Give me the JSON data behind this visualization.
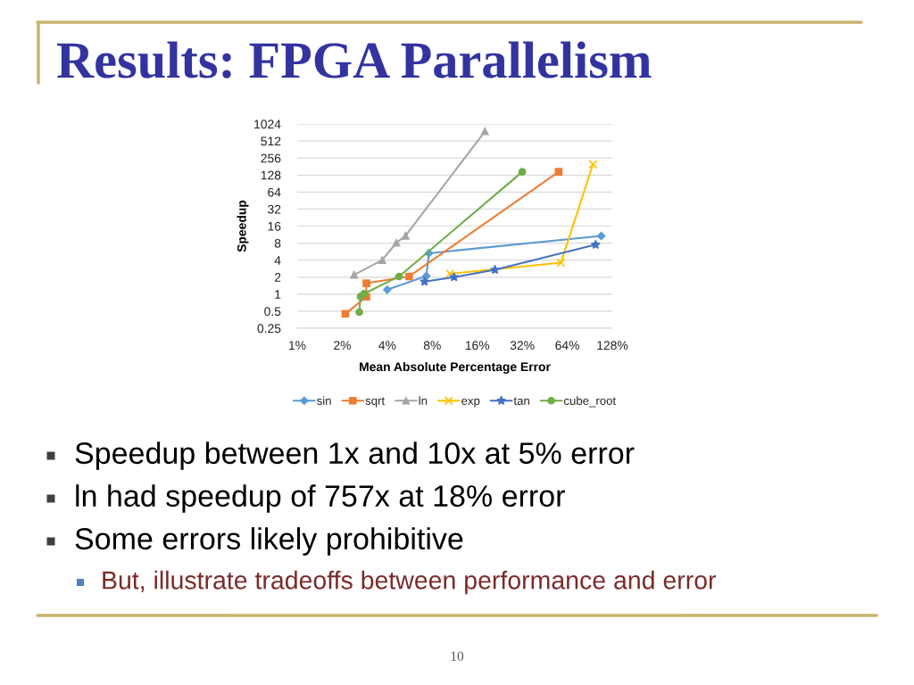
{
  "chart_data": {
    "type": "line",
    "title": "Results: FPGA Parallelism",
    "xlabel": "Mean Absolute Percentage Error",
    "ylabel": "Speedup",
    "log": "xy",
    "xlim": [
      1,
      128
    ],
    "xticks": [
      {
        "value": 1,
        "label": "1%"
      },
      {
        "value": 2,
        "label": "2%"
      },
      {
        "value": 4,
        "label": "4%"
      },
      {
        "value": 8,
        "label": "8%"
      },
      {
        "value": 16,
        "label": "16%"
      },
      {
        "value": 32,
        "label": "32%"
      },
      {
        "value": 64,
        "label": "64%"
      },
      {
        "value": 128,
        "label": "128%"
      }
    ],
    "ylim": [
      0.25,
      1024
    ],
    "yticks": [
      0.25,
      0.5,
      1,
      2,
      4,
      8,
      16,
      32,
      64,
      128,
      256,
      512,
      1024
    ],
    "grid": "y",
    "legend": "bottom",
    "series": [
      {
        "name": "sin",
        "color": "#5b9bd5",
        "marker": "diamond",
        "x": [
          4.0,
          7.3,
          7.6,
          108
        ],
        "values": [
          1.2,
          2.1,
          5.3,
          10.7
        ]
      },
      {
        "name": "sqrt",
        "color": "#ed7d31",
        "marker": "square",
        "x": [
          2.1,
          2.9,
          2.9,
          5.6,
          56
        ],
        "values": [
          0.45,
          0.9,
          1.56,
          2.06,
          146
        ]
      },
      {
        "name": "ln",
        "color": "#a5a5a5",
        "marker": "triangle",
        "x": [
          2.4,
          3.7,
          4.6,
          5.3,
          18
        ],
        "values": [
          2.2,
          4.0,
          8.1,
          10.8,
          757
        ]
      },
      {
        "name": "exp",
        "color": "#ffc000",
        "marker": "cross",
        "x": [
          10.5,
          58,
          95
        ],
        "values": [
          2.3,
          3.6,
          198
        ]
      },
      {
        "name": "tan",
        "color": "#4472c4",
        "marker": "star",
        "x": [
          7.1,
          11.2,
          21,
          99
        ],
        "values": [
          1.67,
          2.0,
          2.7,
          7.5
        ]
      },
      {
        "name": "cube_root",
        "color": "#70ad47",
        "marker": "circle",
        "x": [
          2.6,
          2.65,
          2.8,
          4.8,
          32
        ],
        "values": [
          0.48,
          0.91,
          1.02,
          2.06,
          146
        ]
      }
    ],
    "annotations": [
      "Speedup between 1x and 10x at 5% error",
      "ln had speedup of 757x at 18% error",
      "Some errors likely prohibitive",
      "But, illustrate tradeoffs between performance and error",
      "10"
    ]
  }
}
